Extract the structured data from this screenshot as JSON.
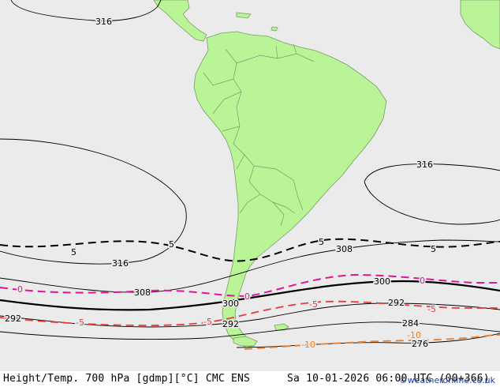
{
  "footer": {
    "title": "Height/Temp. 700 hPa [gdmp][°C] CMC ENS",
    "valid_time": "Sa 10-01-2026 06:00 UTC (00+366)",
    "credit": "©weatheronline.co.uk"
  },
  "colors": {
    "ocean": "#ebebeb",
    "land": "#b9f497",
    "coast": "#7a9a6a",
    "height_contour": "#000000",
    "temp_0": "#e0159a",
    "temp_neg5": "#e83c3c",
    "temp_neg10": "#ee7f2a",
    "temp_pos5": "#000000"
  },
  "contour_labels": {
    "h316_top": "316",
    "h316_right": "316",
    "h316_left": "316",
    "h308_left": "308",
    "h308_right": "308",
    "h300_left": "300",
    "h300_right": "300",
    "h292_left": "292",
    "h292_mid": "292",
    "h292_right": "292",
    "h284": "284",
    "h276": "276",
    "t5_left": "5",
    "t5_mid": "5",
    "t5_right1": "5",
    "t5_right2": "5",
    "t0_left": "0",
    "t0_mid": "0",
    "t0_right": "0",
    "tm5_left": "-5",
    "tm5_mid": "-5",
    "tm5_right1": "-5",
    "tm5_right2": "-5",
    "tm10_left": "-10",
    "tm10_right": "-10"
  }
}
